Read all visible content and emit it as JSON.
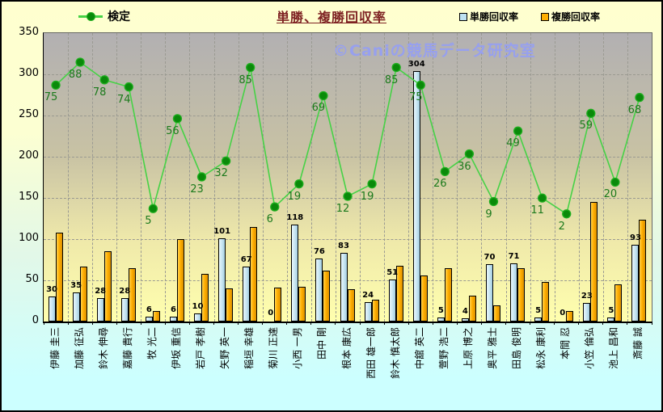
{
  "watermark": "©Caniの競馬データ研究室",
  "chart_data": {
    "type": "bar+line",
    "title": "単勝、複勝回収率",
    "categories": [
      "伊藤 圭三",
      "加藤 征弘",
      "鈴木 伸尋",
      "嘉藤 貴行",
      "牧 光二",
      "伊坂 重信",
      "岩戸 孝樹",
      "矢野 英一",
      "稲垣 幸雄",
      "菊川 正達",
      "小西 一男",
      "田中 剛",
      "根本 康広",
      "西田 雄一郎",
      "鈴木 慎太郎",
      "中舘 英二",
      "萱野 浩二",
      "上原 博之",
      "奥平 雅士",
      "田島 俊明",
      "松永 康利",
      "本間 忍",
      "小笠 倫弘",
      "池上 昌和",
      "斎藤 誠"
    ],
    "series": [
      {
        "name": "検定",
        "type": "line",
        "color": "#46d246",
        "marker_color": "#0a8a0a",
        "labels_shown": true,
        "values": [
          75,
          88,
          78,
          74,
          5,
          56,
          23,
          32,
          85,
          6,
          19,
          69,
          12,
          19,
          85,
          75,
          26,
          36,
          9,
          49,
          11,
          2,
          59,
          20,
          68
        ]
      },
      {
        "name": "単勝回収率",
        "type": "bar",
        "color": "#c6e4f1",
        "labels_shown": true,
        "values": [
          30,
          35,
          28,
          28,
          6,
          6,
          10,
          101,
          67,
          0,
          118,
          76,
          83,
          24,
          51,
          304,
          5,
          4,
          70,
          71,
          5,
          0,
          23,
          5,
          93
        ]
      },
      {
        "name": "複勝回収率",
        "type": "bar",
        "color": "#ffae00",
        "labels_shown": false,
        "values": [
          108,
          67,
          85,
          65,
          13,
          100,
          58,
          40,
          115,
          41,
          42,
          62,
          39,
          26,
          68,
          56,
          65,
          31,
          20,
          65,
          48,
          13,
          145,
          45,
          124
        ]
      }
    ],
    "ylabel": "",
    "ylim": [
      0,
      350
    ],
    "yticks": [
      0,
      50,
      100,
      150,
      200,
      250,
      300,
      350
    ],
    "grid": true,
    "legend_position": "top"
  },
  "colors": {
    "title": "#7e2222",
    "watermark": "#97a0ee",
    "plot_top": "#b2b0b2",
    "plot_bottom": "#ffffae",
    "bg_top": "#ffffcf",
    "bg_bottom": "#ccffff",
    "line": "#46d246",
    "marker": "#0a8a0a",
    "bar_tansho": "#c6e4f1",
    "bar_fukusho": "#ffae00"
  }
}
